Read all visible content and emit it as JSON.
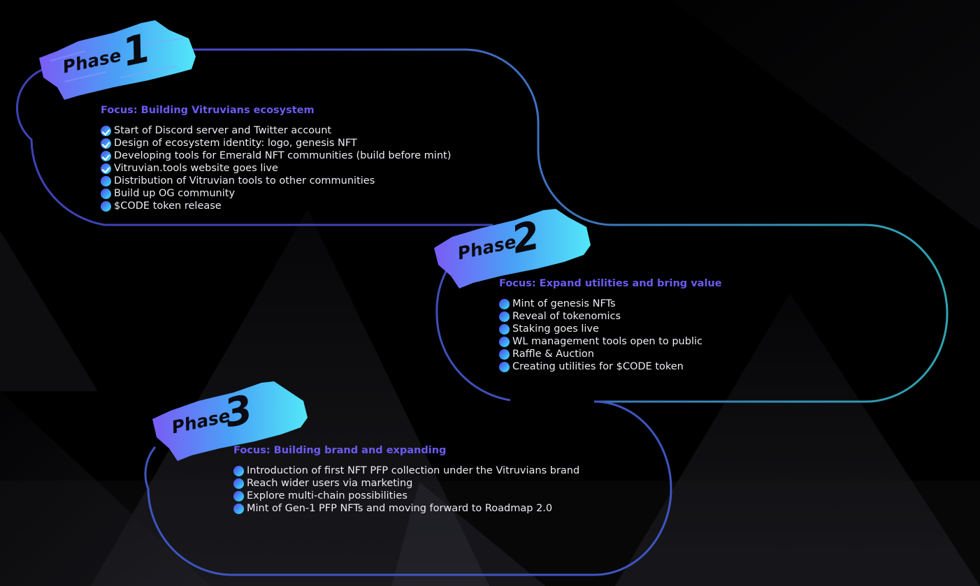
{
  "phases": [
    {
      "badge_word": "Phase",
      "badge_number": "1",
      "focus": "Focus: Building Vitruvians ecosystem",
      "items": [
        {
          "text": "Start of Discord server and Twitter account",
          "done": true
        },
        {
          "text": "Design of ecosystem identity: logo, genesis NFT",
          "done": true
        },
        {
          "text": "Developing tools for Emerald NFT communities (build before mint)",
          "done": true
        },
        {
          "text": "Vitruvian.tools website goes live",
          "done": true
        },
        {
          "text": "Distribution of Vitruvian tools to other communities",
          "done": false
        },
        {
          "text": "Build up OG community",
          "done": false
        },
        {
          "text": "$CODE token release",
          "done": false
        }
      ]
    },
    {
      "badge_word": "Phase",
      "badge_number": "2",
      "focus": "Focus: Expand utilities and bring value",
      "items": [
        {
          "text": "Mint of genesis NFTs",
          "done": false
        },
        {
          "text": "Reveal of tokenomics",
          "done": false
        },
        {
          "text": "Staking goes live",
          "done": false
        },
        {
          "text": "WL management tools open to public",
          "done": false
        },
        {
          "text": "Raffle & Auction",
          "done": false
        },
        {
          "text": "Creating utilities for $CODE token",
          "done": false
        }
      ]
    },
    {
      "badge_word": "Phase",
      "badge_number": "3",
      "focus": "Focus: Building brand and expanding",
      "items": [
        {
          "text": " Introduction of first NFT PFP collection under the Vitruvians brand",
          "done": false
        },
        {
          "text": " Reach wider users via marketing",
          "done": false
        },
        {
          "text": " Explore multi-chain possibilities",
          "done": false
        },
        {
          "text": "Mint of Gen-1 PFP NFTs and moving forward to Roadmap 2.0",
          "done": false
        }
      ]
    }
  ],
  "colors": {
    "background": "#000000",
    "focus_text": "#6a5cf0",
    "item_text": "#ececf2",
    "path_start": "#4a44c8",
    "path_end": "#2fa3b0",
    "brush_start": "#7a5cf5",
    "brush_end": "#52e8f8"
  }
}
